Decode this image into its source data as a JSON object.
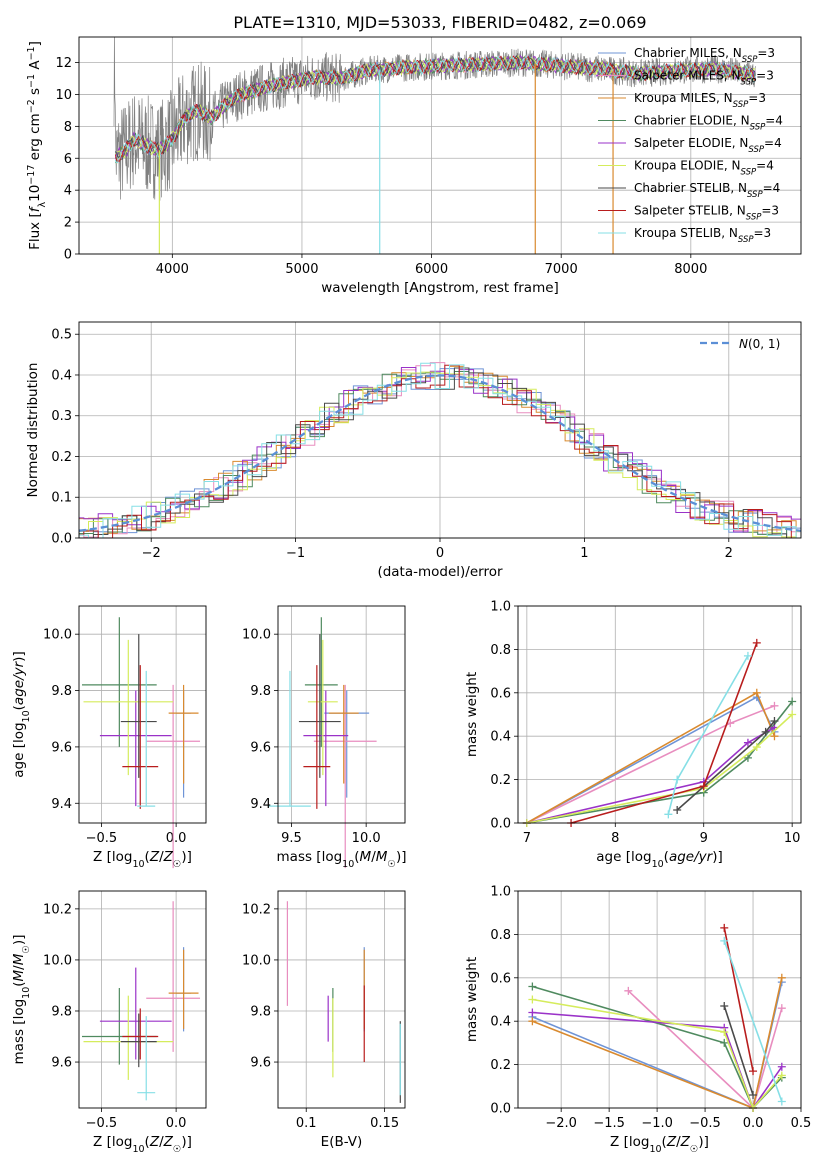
{
  "figure": {
    "title": "PLATE=1310, MJD=53033, FIBERID=0482, z=0.069"
  },
  "models": [
    {
      "name": "Chabrier MILES",
      "nssp": "3",
      "color": "#6f94d6"
    },
    {
      "name": "Salpeter MILES",
      "nssp": "3",
      "color": "#e88dbf"
    },
    {
      "name": "Kroupa MILES",
      "nssp": "3",
      "color": "#d98a2f"
    },
    {
      "name": "Chabrier ELODIE",
      "nssp": "4",
      "color": "#4f8a5f"
    },
    {
      "name": "Salpeter ELODIE",
      "nssp": "4",
      "color": "#9a32c8"
    },
    {
      "name": "Kroupa ELODIE",
      "nssp": "4",
      "color": "#d5ec5c"
    },
    {
      "name": "Chabrier STELIB",
      "nssp": "4",
      "color": "#4a4a4a"
    },
    {
      "name": "Salpeter STELIB",
      "nssp": "3",
      "color": "#b81d1d"
    },
    {
      "name": "Kroupa STELIB",
      "nssp": "3",
      "color": "#86dfe6"
    }
  ],
  "chart_data": [
    {
      "id": "spectrum",
      "type": "line",
      "xlabel": "wavelength [Angstrom, rest frame]",
      "ylabel": "Flux [f_λ10^-17 erg cm^-2 s^-1 A^-1]",
      "xlim": [
        3280,
        8850
      ],
      "ylim": [
        0,
        13.6
      ],
      "xticks": [
        4000,
        5000,
        6000,
        7000,
        8000
      ],
      "yticks": [
        0,
        2,
        4,
        6,
        8,
        10,
        12
      ],
      "data_series": {
        "name": "data",
        "color": "#808080",
        "x_range": [
          3550,
          8500
        ]
      },
      "model_continuum": {
        "x": [
          3560,
          3650,
          3700,
          3800,
          3900,
          4000,
          4100,
          4200,
          4300,
          4400,
          4500,
          4700,
          4900,
          5100,
          5300,
          5500,
          5800,
          6100,
          6400,
          6700,
          7000,
          7300,
          7600,
          7900,
          8200,
          8500
        ],
        "y": [
          6.0,
          6.6,
          7.2,
          6.8,
          6.5,
          7.2,
          8.6,
          9.0,
          8.5,
          9.3,
          9.9,
          10.4,
          10.8,
          11.1,
          11.0,
          11.5,
          11.7,
          11.8,
          11.9,
          12.0,
          11.8,
          11.6,
          11.3,
          11.5,
          11.6,
          11.2
        ]
      },
      "masked_lines": [
        {
          "x": 3900,
          "color": "#d5ec5c"
        },
        {
          "x": 5600,
          "color": "#86dfe6"
        },
        {
          "x": 6800,
          "color": "#d98a2f"
        },
        {
          "x": 7400,
          "color": "#d98a2f"
        }
      ]
    },
    {
      "id": "residuals",
      "type": "histogram",
      "xlabel": "(data-model)/error",
      "ylabel": "Normed distribution",
      "xlim": [
        -2.5,
        2.5
      ],
      "ylim": [
        0,
        0.53
      ],
      "xticks": [
        -2,
        -1,
        0,
        1,
        2
      ],
      "yticks": [
        0.0,
        0.1,
        0.2,
        0.3,
        0.4,
        0.5
      ],
      "bin_width": 0.1,
      "gaussian_label": "N(0,1)",
      "gaussian_color": "#5b8fd6"
    },
    {
      "id": "age-Z",
      "type": "scatter",
      "xlabel": "Z [log10(Z/Z☉)]",
      "ylabel": "age  [log10(age/yr)]",
      "xlim": [
        -0.65,
        0.2
      ],
      "ylim": [
        9.33,
        10.1
      ],
      "xticks": [
        -0.5,
        0.0
      ],
      "yticks": [
        9.4,
        9.6,
        9.8,
        10.0
      ],
      "points": [
        {
          "model": 0,
          "x": 0.05,
          "xerr": 0.05,
          "y": 9.72,
          "yerr": [
            0.3,
            0.08
          ]
        },
        {
          "model": 1,
          "x": -0.02,
          "xerr": 0.18,
          "y": 9.62,
          "yerr": [
            0.45,
            0.2
          ]
        },
        {
          "model": 2,
          "x": 0.05,
          "xerr": 0.1,
          "y": 9.72,
          "yerr": [
            0.25,
            0.1
          ]
        },
        {
          "model": 3,
          "x": -0.38,
          "xerr": 0.25,
          "y": 9.82,
          "yerr": [
            0.22,
            0.24
          ]
        },
        {
          "model": 4,
          "x": -0.27,
          "xerr": 0.24,
          "y": 9.64,
          "yerr": [
            0.25,
            0.16
          ]
        },
        {
          "model": 5,
          "x": -0.32,
          "xerr": 0.3,
          "y": 9.76,
          "yerr": [
            0.26,
            0.22
          ]
        },
        {
          "model": 6,
          "x": -0.25,
          "xerr": 0.12,
          "y": 9.69,
          "yerr": [
            0.2,
            0.31
          ]
        },
        {
          "model": 7,
          "x": -0.24,
          "xerr": 0.12,
          "y": 9.53,
          "yerr": [
            0.15,
            0.36
          ]
        },
        {
          "model": 8,
          "x": -0.2,
          "xerr": 0.06,
          "y": 9.39,
          "yerr": [
            0.0,
            0.48
          ]
        }
      ]
    },
    {
      "id": "age-mass",
      "type": "scatter",
      "xlabel": "mass [log10(M/M☉)]",
      "ylabel": "",
      "xlim": [
        9.41,
        10.26
      ],
      "ylim": [
        9.33,
        10.1
      ],
      "xticks": [
        9.5,
        10.0
      ],
      "yticks": [
        9.4,
        9.6,
        9.8,
        10.0
      ],
      "points": [
        {
          "model": 0,
          "x": 9.87,
          "xerr": 0.15,
          "y": 9.72,
          "yerr": [
            0.3,
            0.08
          ]
        },
        {
          "model": 1,
          "x": 9.86,
          "xerr": 0.21,
          "y": 9.62,
          "yerr": [
            0.45,
            0.2
          ]
        },
        {
          "model": 2,
          "x": 9.85,
          "xerr": 0.1,
          "y": 9.72,
          "yerr": [
            0.25,
            0.1
          ]
        },
        {
          "model": 3,
          "x": 9.7,
          "xerr": 0.11,
          "y": 9.82,
          "yerr": [
            0.22,
            0.24
          ]
        },
        {
          "model": 4,
          "x": 9.73,
          "xerr": 0.15,
          "y": 9.64,
          "yerr": [
            0.25,
            0.16
          ]
        },
        {
          "model": 5,
          "x": 9.71,
          "xerr": 0.1,
          "y": 9.76,
          "yerr": [
            0.26,
            0.22
          ]
        },
        {
          "model": 6,
          "x": 9.69,
          "xerr": 0.14,
          "y": 9.69,
          "yerr": [
            0.2,
            0.31
          ]
        },
        {
          "model": 7,
          "x": 9.67,
          "xerr": 0.09,
          "y": 9.53,
          "yerr": [
            0.15,
            0.36
          ]
        },
        {
          "model": 8,
          "x": 9.49,
          "xerr": 0.14,
          "y": 9.39,
          "yerr": [
            0.0,
            0.48
          ]
        }
      ]
    },
    {
      "id": "weight-age",
      "type": "line",
      "xlabel": "age  [log10(age/yr)]",
      "ylabel": "mass weight",
      "xlim": [
        6.9,
        10.1
      ],
      "ylim": [
        0,
        1.0
      ],
      "xticks": [
        7,
        8,
        9,
        10
      ],
      "yticks": [
        0.0,
        0.2,
        0.4,
        0.6,
        0.8,
        1.0
      ],
      "series": [
        {
          "model": 0,
          "x": [
            7.0,
            9.6,
            9.8
          ],
          "y": [
            0.0,
            0.58,
            0.42
          ]
        },
        {
          "model": 1,
          "x": [
            7.0,
            9.3,
            9.8
          ],
          "y": [
            0.0,
            0.46,
            0.54
          ]
        },
        {
          "model": 2,
          "x": [
            7.0,
            9.6,
            9.8
          ],
          "y": [
            0.0,
            0.6,
            0.4
          ]
        },
        {
          "model": 3,
          "x": [
            7.0,
            9.0,
            9.5,
            10.0
          ],
          "y": [
            0.0,
            0.14,
            0.3,
            0.56
          ]
        },
        {
          "model": 4,
          "x": [
            7.0,
            9.0,
            9.5,
            9.8
          ],
          "y": [
            0.0,
            0.19,
            0.37,
            0.44
          ]
        },
        {
          "model": 5,
          "x": [
            7.0,
            9.0,
            9.6,
            10.0
          ],
          "y": [
            0.0,
            0.16,
            0.35,
            0.5
          ]
        },
        {
          "model": 6,
          "x": [
            8.7,
            9.7,
            9.8
          ],
          "y": [
            0.06,
            0.42,
            0.47
          ]
        },
        {
          "model": 7,
          "x": [
            7.5,
            9.0,
            9.6
          ],
          "y": [
            0.0,
            0.17,
            0.83
          ]
        },
        {
          "model": 8,
          "x": [
            8.6,
            8.7,
            9.5
          ],
          "y": [
            0.04,
            0.2,
            0.77
          ]
        }
      ]
    },
    {
      "id": "mass-Z",
      "type": "scatter",
      "xlabel": "Z [log10(Z/Z☉)]",
      "ylabel": "mass [log10(M/M☉)]",
      "xlim": [
        -0.65,
        0.2
      ],
      "ylim": [
        9.42,
        10.27
      ],
      "xticks": [
        -0.5,
        0.0
      ],
      "yticks": [
        9.6,
        9.8,
        10.0,
        10.2
      ],
      "points": [
        {
          "model": 0,
          "x": 0.05,
          "xerr": 0.05,
          "y": 9.87,
          "yerr": [
            0.15,
            0.18
          ]
        },
        {
          "model": 1,
          "x": -0.02,
          "xerr": 0.18,
          "y": 9.85,
          "yerr": [
            0.21,
            0.38
          ]
        },
        {
          "model": 2,
          "x": 0.05,
          "xerr": 0.1,
          "y": 9.87,
          "yerr": [
            0.14,
            0.17
          ]
        },
        {
          "model": 3,
          "x": -0.38,
          "xerr": 0.25,
          "y": 9.7,
          "yerr": [
            0.11,
            0.19
          ]
        },
        {
          "model": 4,
          "x": -0.27,
          "xerr": 0.24,
          "y": 9.76,
          "yerr": [
            0.15,
            0.21
          ]
        },
        {
          "model": 5,
          "x": -0.32,
          "xerr": 0.3,
          "y": 9.68,
          "yerr": [
            0.15,
            0.18
          ]
        },
        {
          "model": 6,
          "x": -0.25,
          "xerr": 0.12,
          "y": 9.68,
          "yerr": [
            0.1,
            0.11
          ]
        },
        {
          "model": 7,
          "x": -0.24,
          "xerr": 0.12,
          "y": 9.7,
          "yerr": [
            0.09,
            0.11
          ]
        },
        {
          "model": 8,
          "x": -0.2,
          "xerr": 0.06,
          "y": 9.48,
          "yerr": [
            0.03,
            0.3
          ]
        }
      ]
    },
    {
      "id": "mass-ebv",
      "type": "scatter",
      "xlabel": "E(B-V)",
      "ylabel": "",
      "xlim": [
        0.082,
        0.163
      ],
      "ylim": [
        9.42,
        10.27
      ],
      "xticks": [
        0.1,
        0.15
      ],
      "yticks": [
        9.6,
        9.8,
        10.0,
        10.2
      ],
      "points": [
        {
          "model": 0,
          "x": 0.137,
          "y": 9.87,
          "yerr": [
            0.15,
            0.18
          ]
        },
        {
          "model": 1,
          "x": 0.088,
          "y": 10.02,
          "yerr": [
            0.2,
            0.21
          ]
        },
        {
          "model": 2,
          "x": 0.137,
          "y": 9.87,
          "yerr": [
            0.14,
            0.17
          ]
        },
        {
          "model": 3,
          "x": 0.117,
          "y": 9.75,
          "yerr": [
            0.11,
            0.14
          ]
        },
        {
          "model": 4,
          "x": 0.114,
          "y": 9.76,
          "yerr": [
            0.08,
            0.1
          ]
        },
        {
          "model": 5,
          "x": 0.117,
          "y": 9.7,
          "yerr": [
            0.16,
            0.15
          ]
        },
        {
          "model": 6,
          "x": 0.16,
          "y": 9.62,
          "yerr": [
            0.18,
            0.14
          ]
        },
        {
          "model": 7,
          "x": 0.137,
          "y": 9.68,
          "yerr": [
            0.08,
            0.22
          ]
        },
        {
          "model": 8,
          "x": 0.16,
          "y": 9.55,
          "yerr": [
            0.08,
            0.2
          ]
        }
      ]
    },
    {
      "id": "weight-Z",
      "type": "line",
      "xlabel": "Z [log10(Z/Z☉)]",
      "ylabel": "mass weight",
      "xlim": [
        -2.45,
        0.5
      ],
      "ylim": [
        0,
        1.0
      ],
      "xticks": [
        -2.0,
        -1.5,
        -1.0,
        -0.5,
        0.0,
        0.5
      ],
      "yticks": [
        0.0,
        0.2,
        0.4,
        0.6,
        0.8,
        1.0
      ],
      "series": [
        {
          "model": 0,
          "x": [
            -2.3,
            0.0,
            0.3
          ],
          "y": [
            0.42,
            0.0,
            0.58
          ]
        },
        {
          "model": 1,
          "x": [
            -1.3,
            0.0,
            0.3
          ],
          "y": [
            0.54,
            0.0,
            0.46
          ]
        },
        {
          "model": 2,
          "x": [
            -2.3,
            0.0,
            0.3
          ],
          "y": [
            0.4,
            0.0,
            0.6
          ]
        },
        {
          "model": 3,
          "x": [
            -2.3,
            -0.3,
            0.0,
            0.3
          ],
          "y": [
            0.56,
            0.3,
            0.0,
            0.14
          ]
        },
        {
          "model": 4,
          "x": [
            -2.3,
            -0.3,
            0.0,
            0.3
          ],
          "y": [
            0.44,
            0.37,
            0.0,
            0.19
          ]
        },
        {
          "model": 5,
          "x": [
            -2.3,
            -0.3,
            0.0,
            0.3
          ],
          "y": [
            0.5,
            0.35,
            0.0,
            0.15
          ]
        },
        {
          "model": 6,
          "x": [
            -0.3,
            0.0
          ],
          "y": [
            0.47,
            0.06
          ]
        },
        {
          "model": 7,
          "x": [
            -0.3,
            0.0
          ],
          "y": [
            0.83,
            0.17
          ]
        },
        {
          "model": 8,
          "x": [
            -0.3,
            0.3
          ],
          "y": [
            0.77,
            0.03
          ]
        }
      ]
    }
  ]
}
